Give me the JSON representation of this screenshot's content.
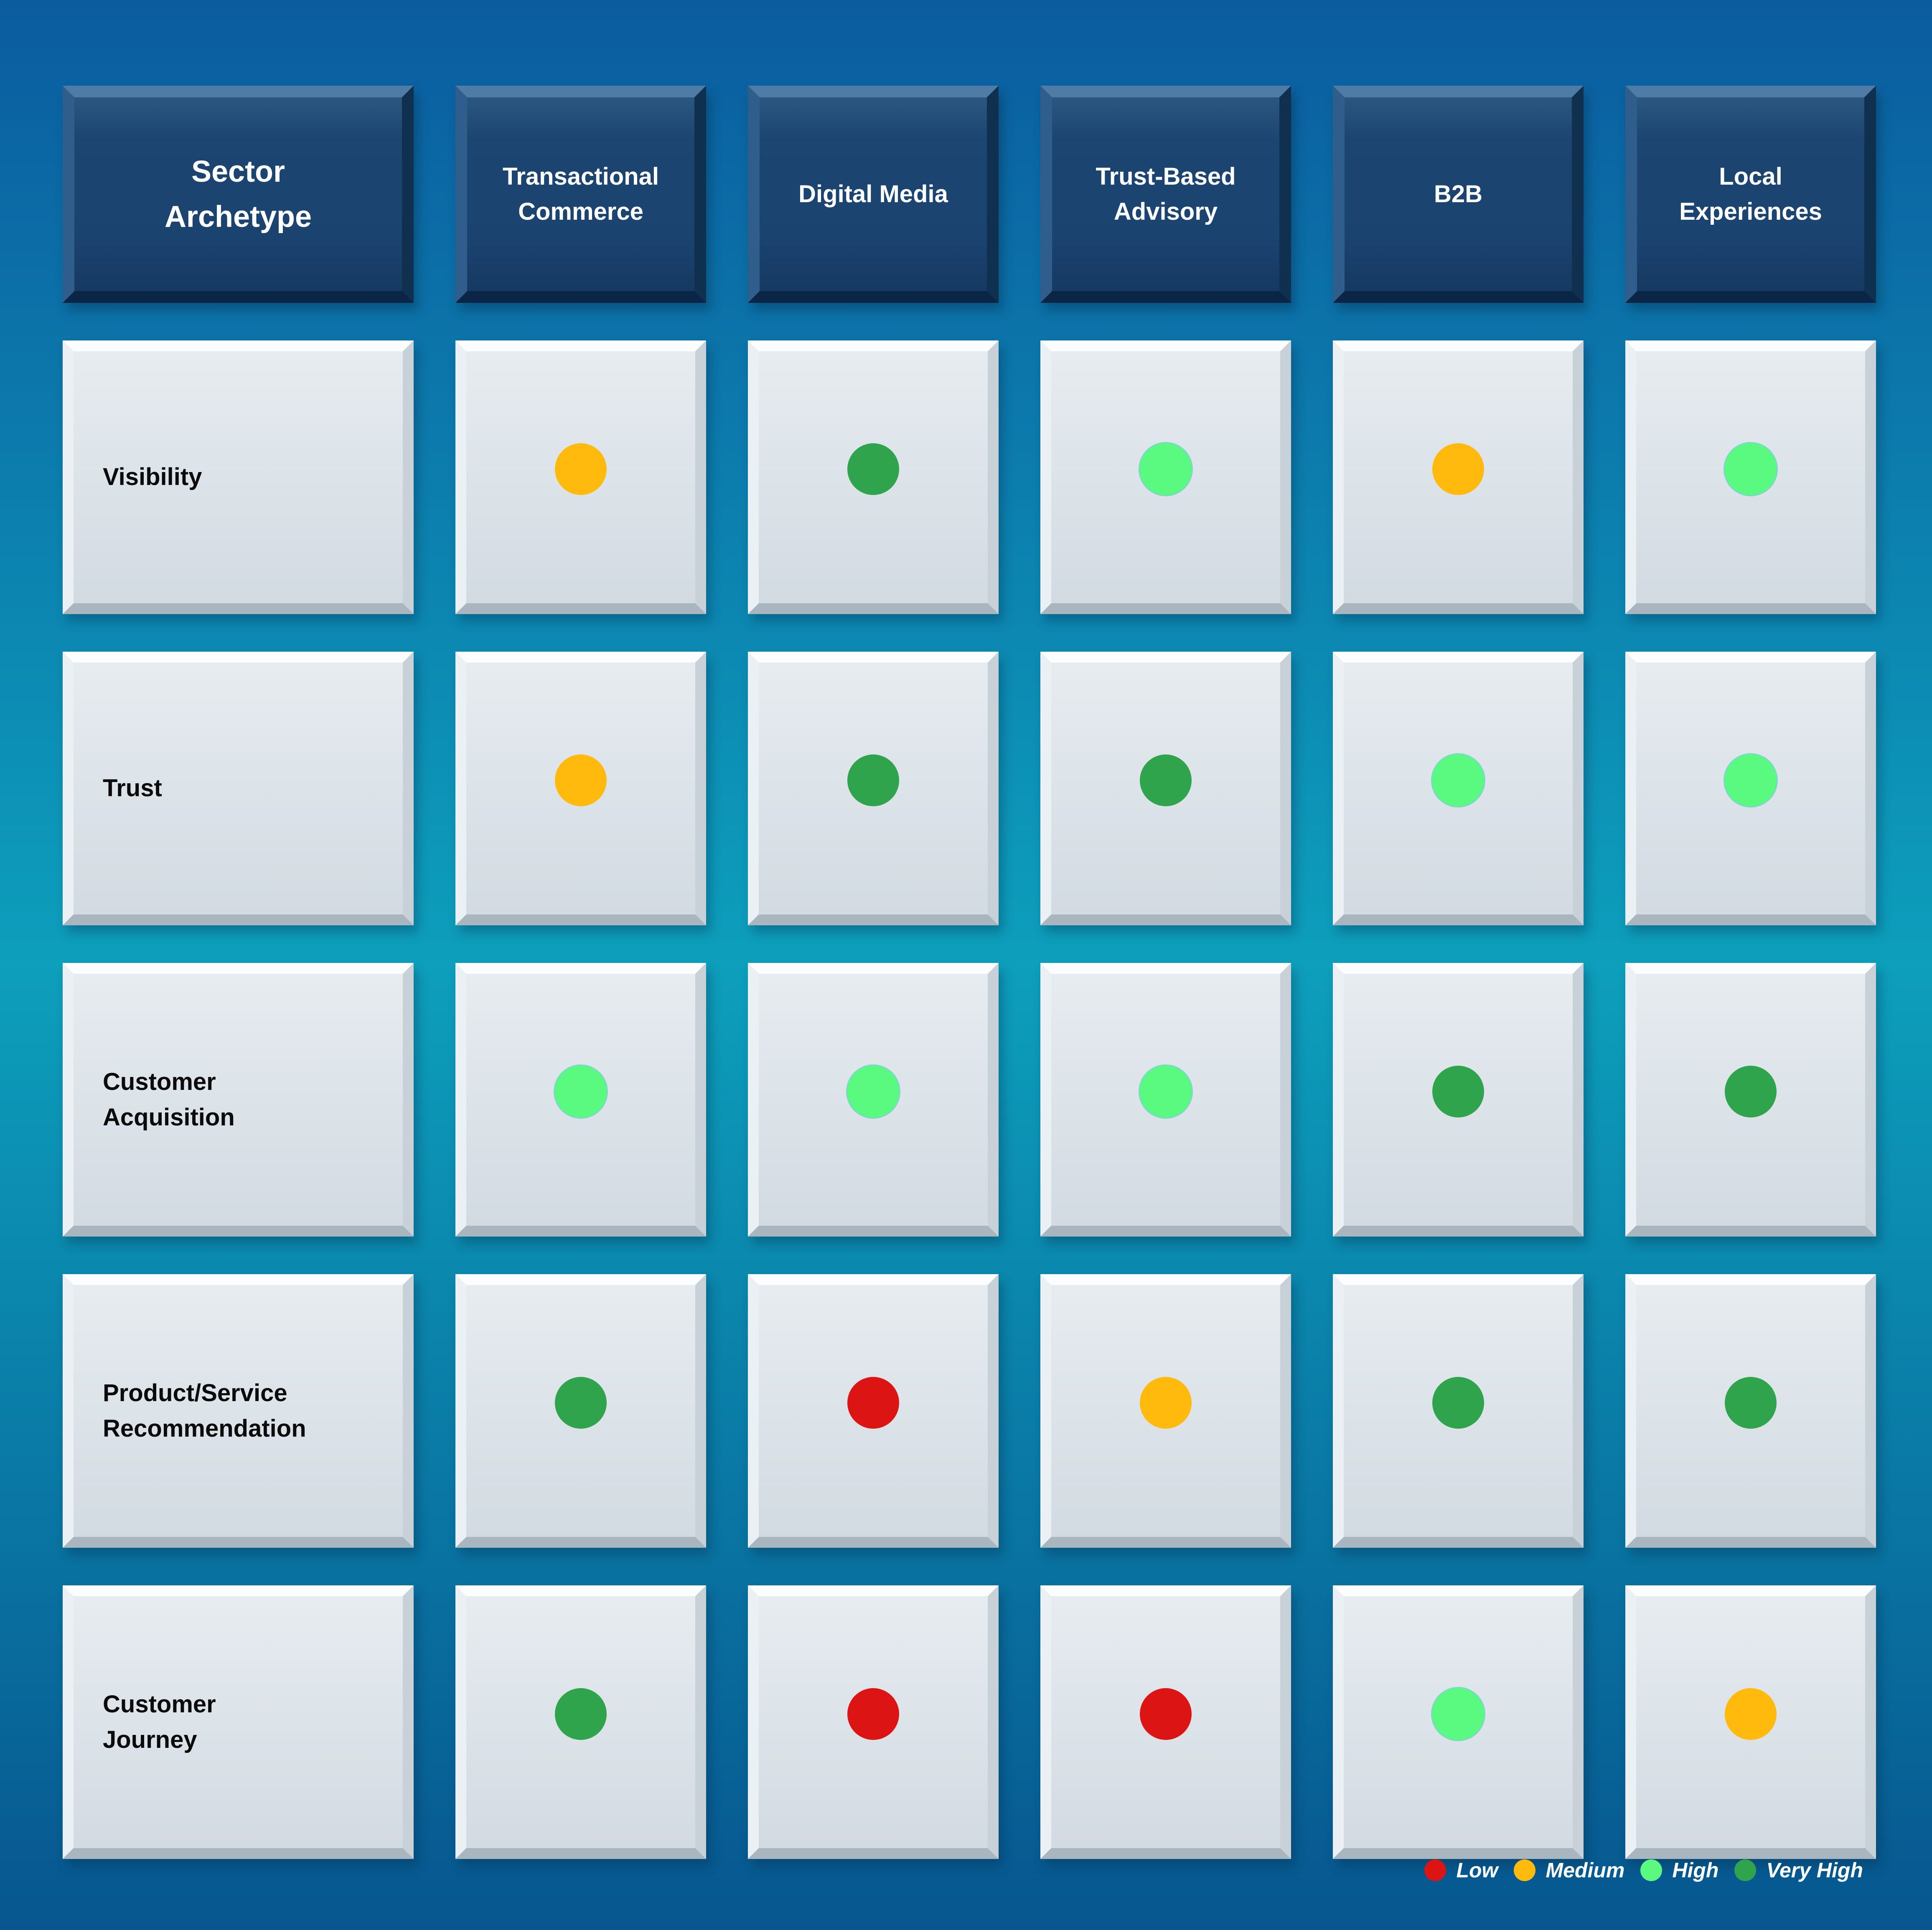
{
  "table": {
    "corner_header": "Sector Archetype",
    "column_headers": [
      "Transactional Commerce",
      "Digital Media",
      "Trust-Based Advisory",
      "B2B",
      "Local Experiences"
    ],
    "rows": [
      {
        "label": "Visibility",
        "ratings": [
          "medium",
          "very_high",
          "high",
          "medium",
          "high"
        ]
      },
      {
        "label": "Trust",
        "ratings": [
          "medium",
          "very_high",
          "very_high",
          "high",
          "high"
        ]
      },
      {
        "label": "Customer Acquisition",
        "ratings": [
          "high",
          "high",
          "high",
          "very_high",
          "very_high"
        ]
      },
      {
        "label": "Product/Service Recommendation",
        "ratings": [
          "very_high",
          "low",
          "medium",
          "very_high",
          "very_high"
        ]
      },
      {
        "label": "Customer Journey",
        "ratings": [
          "very_high",
          "low",
          "low",
          "high",
          "medium"
        ]
      }
    ]
  },
  "legend": {
    "items": [
      {
        "label": "Low",
        "level": "low"
      },
      {
        "label": "Medium",
        "level": "medium"
      },
      {
        "label": "High",
        "level": "high"
      },
      {
        "label": "Very High",
        "level": "very_high"
      }
    ]
  },
  "colors": {
    "low": "#DC1414",
    "medium": "#FFBA0D",
    "high": "#59FA7F",
    "very_high": "#2FA44C",
    "header_bg": "#1B4470",
    "cell_bg": "#DCE3E9",
    "background_top": "#0B5C9F",
    "background_mid": "#0D9FBC",
    "background_bottom": "#07568F",
    "legend_text": "#FFFFFF"
  }
}
